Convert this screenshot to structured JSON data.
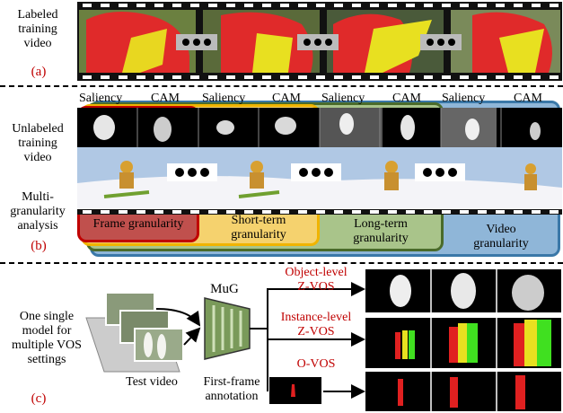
{
  "panel_a": {
    "side_label_lines": [
      "Labeled",
      "training",
      "video"
    ],
    "tag": "(a)"
  },
  "panel_b": {
    "header_labels": [
      "Saliency",
      "CAM",
      "Saliency",
      "CAM",
      "Saliency",
      "CAM",
      "Saliency",
      "CAM"
    ],
    "side_label_1_lines": [
      "Unlabeled",
      "training",
      "video"
    ],
    "side_label_2_lines": [
      "Multi-",
      "granularity",
      "analysis"
    ],
    "tag": "(b)",
    "granularities": [
      {
        "lines": [
          "Frame granularity"
        ],
        "color": "#c00000",
        "fill": "#c0504d"
      },
      {
        "lines": [
          "Short-term",
          "granularity"
        ],
        "color": "#f0b400",
        "fill": "#f5d26e"
      },
      {
        "lines": [
          "Long-term",
          "granularity"
        ],
        "color": "#4a6b2a",
        "fill": "#a9c48a"
      },
      {
        "lines": [
          "Video",
          "granularity"
        ],
        "color": "#3a78a8",
        "fill": "#8fb6d8"
      }
    ]
  },
  "panel_c": {
    "side_label_lines": [
      "One single",
      "model for",
      "multiple VOS",
      "settings"
    ],
    "tag": "(c)",
    "test_video_label": "Test video",
    "model_label": "MuG",
    "first_frame_label_lines": [
      "First-frame",
      "annotation"
    ],
    "outputs": [
      {
        "lines": [
          "Object-level",
          "Z-VOS"
        ]
      },
      {
        "lines": [
          "Instance-level",
          "Z-VOS"
        ]
      },
      {
        "lines": [
          "O-VOS"
        ]
      }
    ]
  },
  "colors": {
    "mask_yellow": "#e8e020",
    "mask_red": "#e02020",
    "mask_green": "#40e020",
    "model_green": "#7a9a5a"
  }
}
